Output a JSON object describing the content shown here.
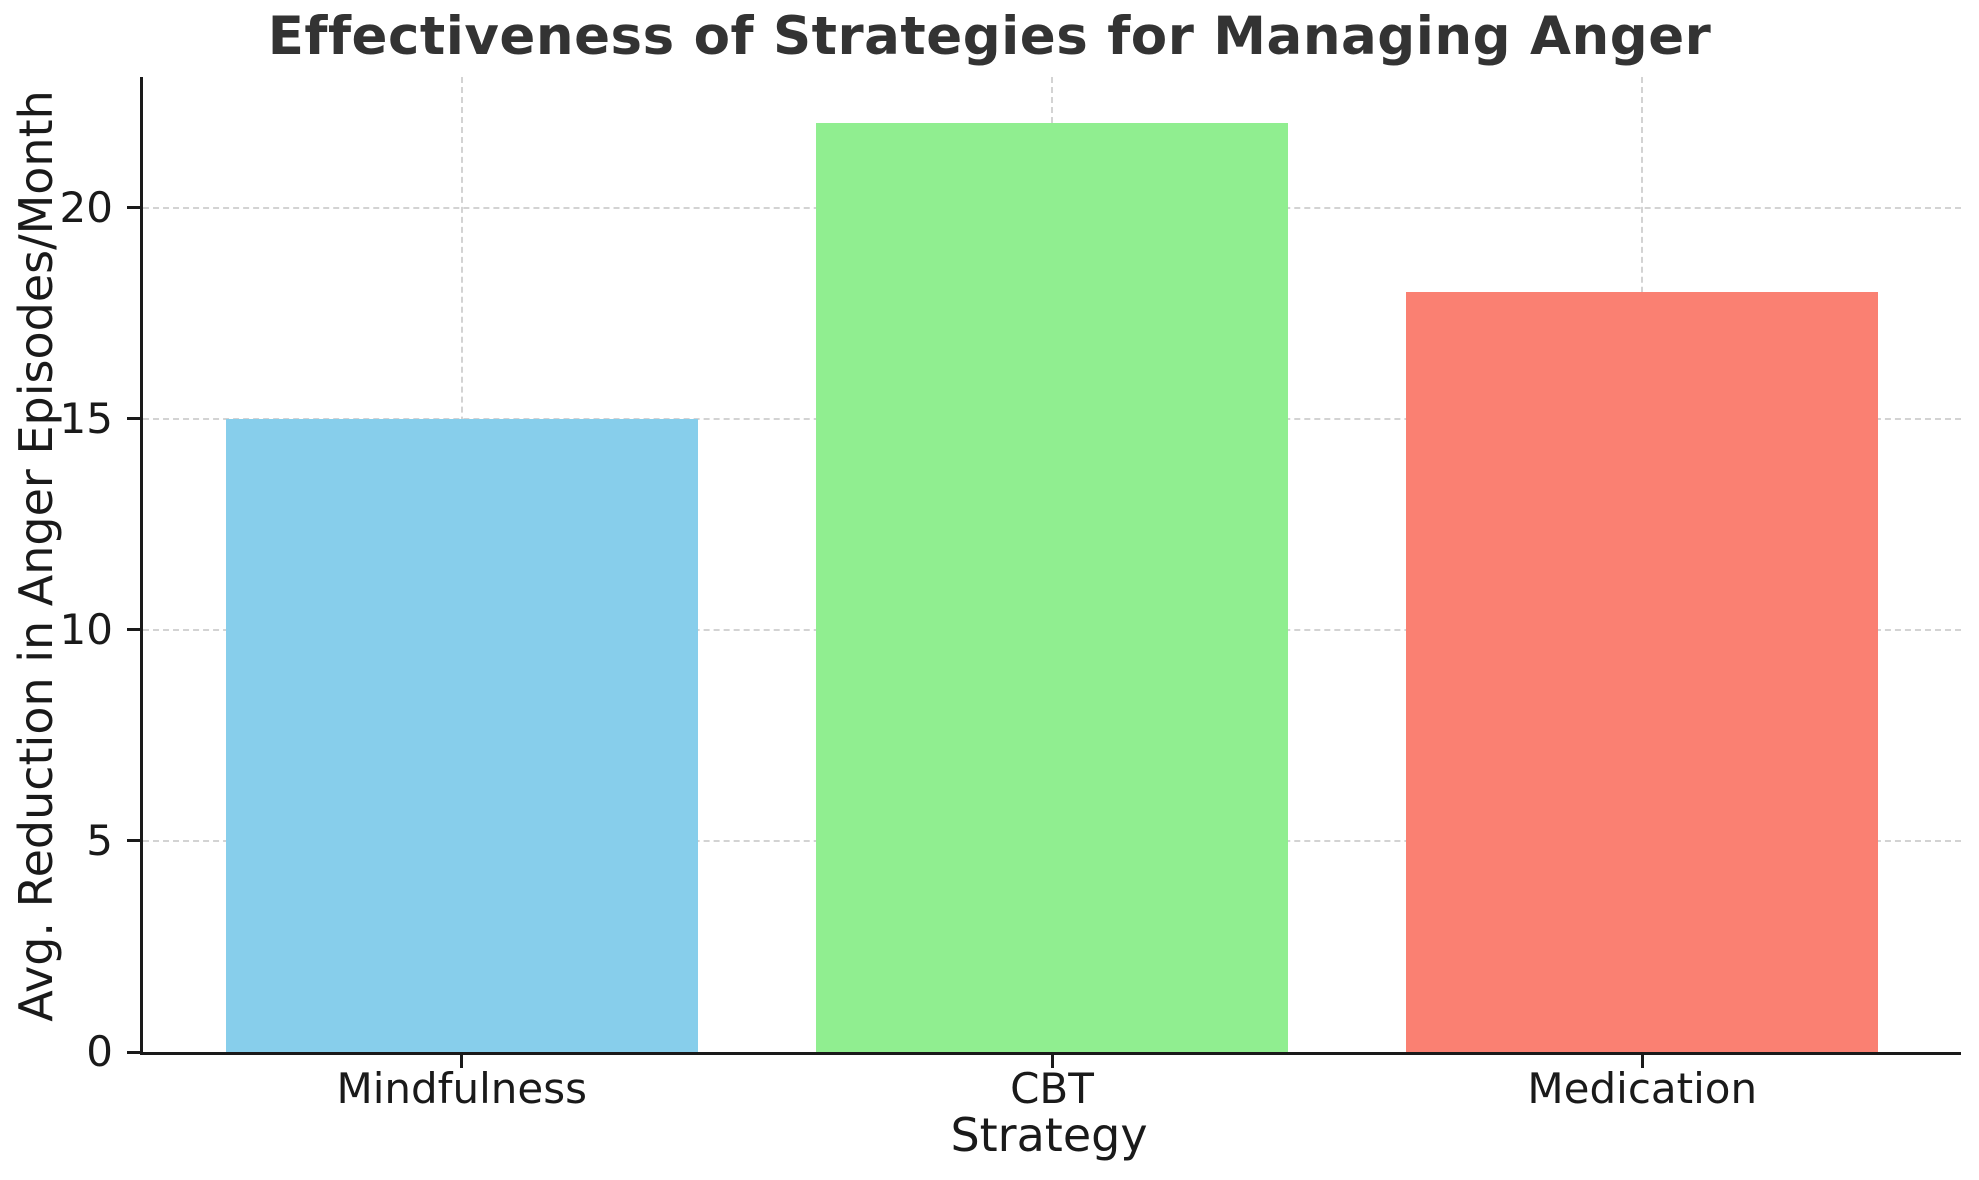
{
  "chart_data": {
    "type": "bar",
    "title": "Effectiveness of Strategies for Managing Anger",
    "xlabel": "Strategy",
    "ylabel": "Avg. Reduction in Anger Episodes/Month",
    "categories": [
      "Mindfulness",
      "CBT",
      "Medication"
    ],
    "values": [
      15,
      22,
      18
    ],
    "bar_colors": [
      "#87CEEB",
      "#90EE90",
      "#FA8072"
    ],
    "yticks": [
      0,
      5,
      10,
      15,
      20
    ],
    "ylim": [
      0,
      23.1
    ],
    "xlim": [
      -0.54,
      2.54
    ],
    "bar_width_units": 0.8,
    "grid": "dashed, horizontal at yticks and vertical at category centers",
    "legend_position": "none",
    "style_colors": {
      "grid": "#d3d3d3",
      "spine": "#1a1a1a",
      "title_text": "#333333",
      "tick_text": "#1a1a1a",
      "background": "#ffffff"
    }
  }
}
